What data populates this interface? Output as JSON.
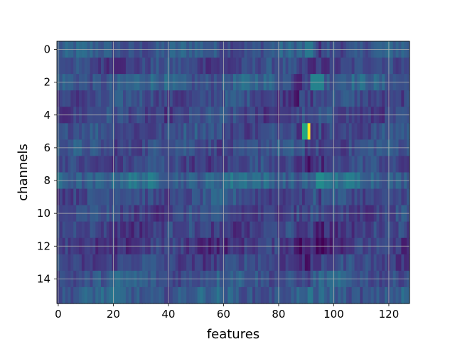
{
  "chart_data": {
    "type": "heatmap",
    "xlabel": "features",
    "ylabel": "channels",
    "xlim": [
      -0.5,
      127.5
    ],
    "ylim": [
      15.5,
      -0.5
    ],
    "x_ticks": [
      "0",
      "20",
      "40",
      "60",
      "80",
      "100",
      "120"
    ],
    "y_ticks": [
      "0",
      "2",
      "4",
      "6",
      "8",
      "10",
      "12",
      "14"
    ],
    "grid": true,
    "colormap": "viridis",
    "n_rows": 16,
    "n_cols": 128,
    "row_base_levels": [
      0.34,
      0.26,
      0.36,
      0.28,
      0.26,
      0.3,
      0.3,
      0.26,
      0.42,
      0.3,
      0.26,
      0.24,
      0.2,
      0.26,
      0.34,
      0.36
    ],
    "highlights": [
      {
        "row": 5,
        "col_start": 89,
        "col_end": 91,
        "level": 0.75
      },
      {
        "row": 5,
        "col_start": 91,
        "col_end": 92,
        "level": 1.0
      },
      {
        "row": 2,
        "col_start": 92,
        "col_end": 97,
        "level": 0.55
      },
      {
        "row": 8,
        "col_start": 94,
        "col_end": 97,
        "level": 0.6
      },
      {
        "row": 0,
        "col_start": 90,
        "col_end": 93,
        "level": 0.5
      }
    ]
  }
}
